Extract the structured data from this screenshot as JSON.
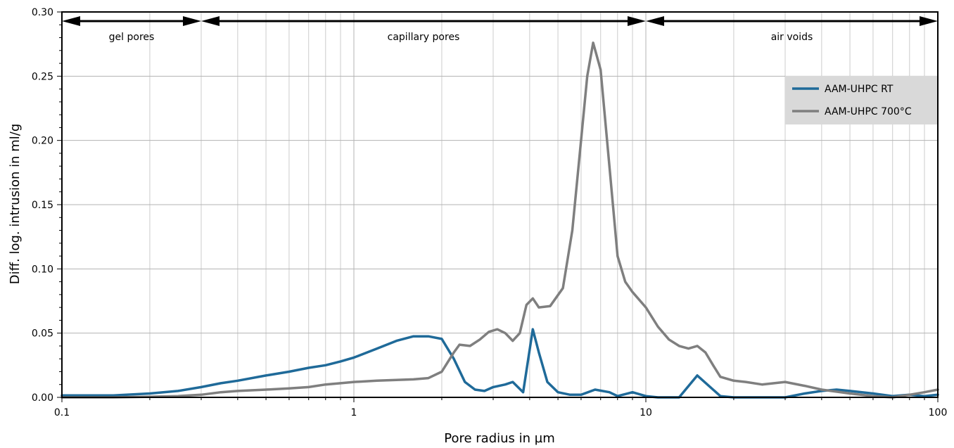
{
  "chart_data": {
    "type": "line",
    "xlabel": "Pore radius in µm",
    "ylabel": "Diff. log. intrusion in ml/g",
    "x_scale": "log",
    "xlim": [
      0.1,
      100
    ],
    "ylim": [
      0,
      0.3
    ],
    "x_ticks": [
      {
        "value": 0.1,
        "label": "0.1"
      },
      {
        "value": 1,
        "label": "1"
      },
      {
        "value": 10,
        "label": "10"
      },
      {
        "value": 100,
        "label": "100"
      }
    ],
    "y_ticks": [
      {
        "value": 0.0,
        "label": "0.00"
      },
      {
        "value": 0.05,
        "label": "0.05"
      },
      {
        "value": 0.1,
        "label": "0.10"
      },
      {
        "value": 0.15,
        "label": "0.15"
      },
      {
        "value": 0.2,
        "label": "0.20"
      },
      {
        "value": 0.25,
        "label": "0.25"
      },
      {
        "value": 0.3,
        "label": "0.30"
      }
    ],
    "grid": true,
    "legend_position": "top-right",
    "regions": [
      {
        "label": "gel pores",
        "from": 0.1,
        "to": 0.3
      },
      {
        "label": "capillary pores",
        "from": 0.3,
        "to": 10
      },
      {
        "label": "air voids",
        "from": 10,
        "to": 100
      }
    ],
    "series": [
      {
        "name": "AAM-UHPC RT",
        "color": "#1f6a99",
        "points": [
          [
            0.1,
            0.0015
          ],
          [
            0.12,
            0.0015
          ],
          [
            0.15,
            0.0015
          ],
          [
            0.2,
            0.003
          ],
          [
            0.25,
            0.005
          ],
          [
            0.3,
            0.008
          ],
          [
            0.35,
            0.011
          ],
          [
            0.4,
            0.013
          ],
          [
            0.5,
            0.017
          ],
          [
            0.6,
            0.02
          ],
          [
            0.7,
            0.023
          ],
          [
            0.8,
            0.025
          ],
          [
            0.9,
            0.028
          ],
          [
            1.0,
            0.031
          ],
          [
            1.2,
            0.038
          ],
          [
            1.4,
            0.044
          ],
          [
            1.6,
            0.0475
          ],
          [
            1.8,
            0.0475
          ],
          [
            2.0,
            0.0455
          ],
          [
            2.2,
            0.03
          ],
          [
            2.4,
            0.012
          ],
          [
            2.6,
            0.006
          ],
          [
            2.8,
            0.005
          ],
          [
            3.0,
            0.008
          ],
          [
            3.3,
            0.01
          ],
          [
            3.5,
            0.012
          ],
          [
            3.8,
            0.004
          ],
          [
            4.1,
            0.053
          ],
          [
            4.3,
            0.035
          ],
          [
            4.6,
            0.012
          ],
          [
            5.0,
            0.004
          ],
          [
            5.5,
            0.002
          ],
          [
            6.0,
            0.002
          ],
          [
            6.7,
            0.006
          ],
          [
            7.5,
            0.004
          ],
          [
            8.0,
            0.001
          ],
          [
            9.0,
            0.004
          ],
          [
            10.0,
            0.001
          ],
          [
            11.0,
            0.0
          ],
          [
            13.0,
            0.0
          ],
          [
            15.0,
            0.017
          ],
          [
            18.0,
            0.001
          ],
          [
            20.0,
            0.0
          ],
          [
            25.0,
            0.0
          ],
          [
            30.0,
            0.0
          ],
          [
            35.0,
            0.003
          ],
          [
            40.0,
            0.005
          ],
          [
            45.0,
            0.006
          ],
          [
            50.0,
            0.005
          ],
          [
            60.0,
            0.003
          ],
          [
            70.0,
            0.001
          ],
          [
            80.0,
            0.002
          ],
          [
            90.0,
            0.001
          ],
          [
            100.0,
            0.002
          ]
        ]
      },
      {
        "name": "AAM-UHPC 700°C",
        "color": "#7f7f7f",
        "points": [
          [
            0.1,
            0.0
          ],
          [
            0.15,
            0.0
          ],
          [
            0.2,
            0.0005
          ],
          [
            0.25,
            0.001
          ],
          [
            0.3,
            0.002
          ],
          [
            0.35,
            0.004
          ],
          [
            0.4,
            0.005
          ],
          [
            0.5,
            0.006
          ],
          [
            0.6,
            0.007
          ],
          [
            0.7,
            0.008
          ],
          [
            0.8,
            0.01
          ],
          [
            0.9,
            0.011
          ],
          [
            1.0,
            0.012
          ],
          [
            1.2,
            0.013
          ],
          [
            1.4,
            0.0135
          ],
          [
            1.6,
            0.014
          ],
          [
            1.8,
            0.015
          ],
          [
            2.0,
            0.02
          ],
          [
            2.2,
            0.035
          ],
          [
            2.3,
            0.041
          ],
          [
            2.5,
            0.04
          ],
          [
            2.7,
            0.045
          ],
          [
            2.9,
            0.051
          ],
          [
            3.1,
            0.053
          ],
          [
            3.3,
            0.05
          ],
          [
            3.5,
            0.044
          ],
          [
            3.7,
            0.05
          ],
          [
            3.9,
            0.072
          ],
          [
            4.1,
            0.077
          ],
          [
            4.3,
            0.07
          ],
          [
            4.7,
            0.071
          ],
          [
            5.2,
            0.085
          ],
          [
            5.6,
            0.13
          ],
          [
            6.0,
            0.2
          ],
          [
            6.3,
            0.25
          ],
          [
            6.6,
            0.276
          ],
          [
            7.0,
            0.255
          ],
          [
            7.5,
            0.18
          ],
          [
            8.0,
            0.11
          ],
          [
            8.5,
            0.09
          ],
          [
            9.0,
            0.082
          ],
          [
            10.0,
            0.07
          ],
          [
            11.0,
            0.055
          ],
          [
            12.0,
            0.045
          ],
          [
            13.0,
            0.04
          ],
          [
            14.0,
            0.038
          ],
          [
            15.0,
            0.04
          ],
          [
            16.0,
            0.035
          ],
          [
            17.0,
            0.025
          ],
          [
            18.0,
            0.016
          ],
          [
            20.0,
            0.013
          ],
          [
            22.0,
            0.012
          ],
          [
            25.0,
            0.01
          ],
          [
            30.0,
            0.012
          ],
          [
            35.0,
            0.009
          ],
          [
            40.0,
            0.006
          ],
          [
            50.0,
            0.003
          ],
          [
            60.0,
            0.001
          ],
          [
            70.0,
            0.0
          ],
          [
            80.0,
            0.002
          ],
          [
            90.0,
            0.004
          ],
          [
            100.0,
            0.006
          ]
        ]
      }
    ]
  }
}
